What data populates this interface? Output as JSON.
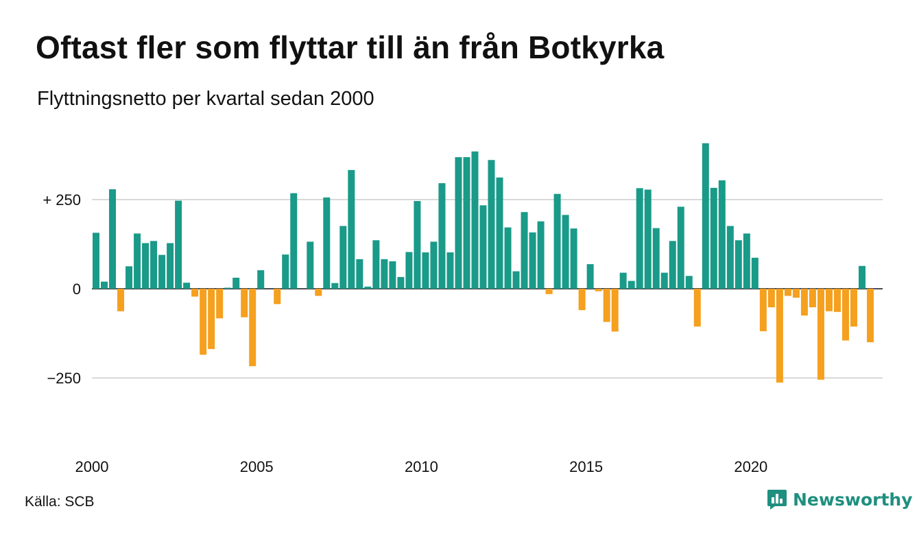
{
  "header": {
    "title": "Oftast fler som flyttar till än från Botkyrka",
    "subtitle": "Flyttningsnetto per kvartal sedan 2000"
  },
  "footer": {
    "source": "Källa: SCB",
    "brand": "Newsworthy",
    "brand_icon": "bar-chart-logo-icon"
  },
  "colors": {
    "positive": "#1a9a88",
    "negative": "#f5a01e",
    "grid": "#d9d9d9",
    "axis": "#111111",
    "brand": "#1f8f7f"
  },
  "chart_data": {
    "type": "bar",
    "title": "Oftast fler som flyttar till än från Botkyrka",
    "subtitle": "Flyttningsnetto per kvartal sedan 2000",
    "xlabel": "",
    "ylabel": "",
    "ylim": [
      -400,
      420
    ],
    "yticks": [
      250,
      0,
      -250
    ],
    "ytick_labels": [
      "+ 250",
      "0",
      "−250"
    ],
    "xticks": [
      {
        "label": "2000",
        "index": 0
      },
      {
        "label": "2005",
        "index": 20
      },
      {
        "label": "2010",
        "index": 40
      },
      {
        "label": "2015",
        "index": 60
      },
      {
        "label": "2020",
        "index": 80
      }
    ],
    "grid": true,
    "legend": "none",
    "categories": [
      "2000K1",
      "2000K2",
      "2000K3",
      "2000K4",
      "2001K1",
      "2001K2",
      "2001K3",
      "2001K4",
      "2002K1",
      "2002K2",
      "2002K3",
      "2002K4",
      "2003K1",
      "2003K2",
      "2003K3",
      "2003K4",
      "2004K1",
      "2004K2",
      "2004K3",
      "2004K4",
      "2005K1",
      "2005K2",
      "2005K3",
      "2005K4",
      "2006K1",
      "2006K2",
      "2006K3",
      "2006K4",
      "2007K1",
      "2007K2",
      "2007K3",
      "2007K4",
      "2008K1",
      "2008K2",
      "2008K3",
      "2008K4",
      "2009K1",
      "2009K2",
      "2009K3",
      "2009K4",
      "2010K1",
      "2010K2",
      "2010K3",
      "2010K4",
      "2011K1",
      "2011K2",
      "2011K3",
      "2011K4",
      "2012K1",
      "2012K2",
      "2012K3",
      "2012K4",
      "2013K1",
      "2013K2",
      "2013K3",
      "2013K4",
      "2014K1",
      "2014K2",
      "2014K3",
      "2014K4",
      "2015K1",
      "2015K2",
      "2015K3",
      "2015K4",
      "2016K1",
      "2016K2",
      "2016K3",
      "2016K4",
      "2017K1",
      "2017K2",
      "2017K3",
      "2017K4",
      "2018K1",
      "2018K2",
      "2018K3",
      "2018K4",
      "2019K1",
      "2019K2",
      "2019K3",
      "2019K4",
      "2020K1",
      "2020K2",
      "2020K3",
      "2020K4",
      "2021K1",
      "2021K2",
      "2021K3",
      "2021K4",
      "2022K1",
      "2022K2",
      "2022K3",
      "2022K4",
      "2023K1",
      "2023K2",
      "2023K3",
      "2023K4"
    ],
    "values": [
      157,
      20,
      279,
      -63,
      63,
      155,
      128,
      134,
      95,
      128,
      247,
      17,
      -22,
      -185,
      -169,
      -83,
      3,
      31,
      -80,
      -217,
      52,
      0,
      -43,
      96,
      268,
      0,
      132,
      -20,
      256,
      16,
      176,
      333,
      83,
      6,
      136,
      83,
      77,
      33,
      103,
      246,
      102,
      132,
      296,
      102,
      369,
      369,
      385,
      234,
      361,
      312,
      172,
      49,
      215,
      158,
      189,
      -15,
      266,
      207,
      169,
      -60,
      69,
      -7,
      -93,
      -120,
      45,
      22,
      282,
      278,
      170,
      45,
      134,
      230,
      36,
      -106,
      408,
      283,
      304,
      176,
      136,
      155,
      87,
      -119,
      -52,
      -263,
      -20,
      -25,
      -75,
      -52,
      -255,
      -63,
      -65,
      -145,
      -106,
      64,
      -150,
      0
    ]
  }
}
